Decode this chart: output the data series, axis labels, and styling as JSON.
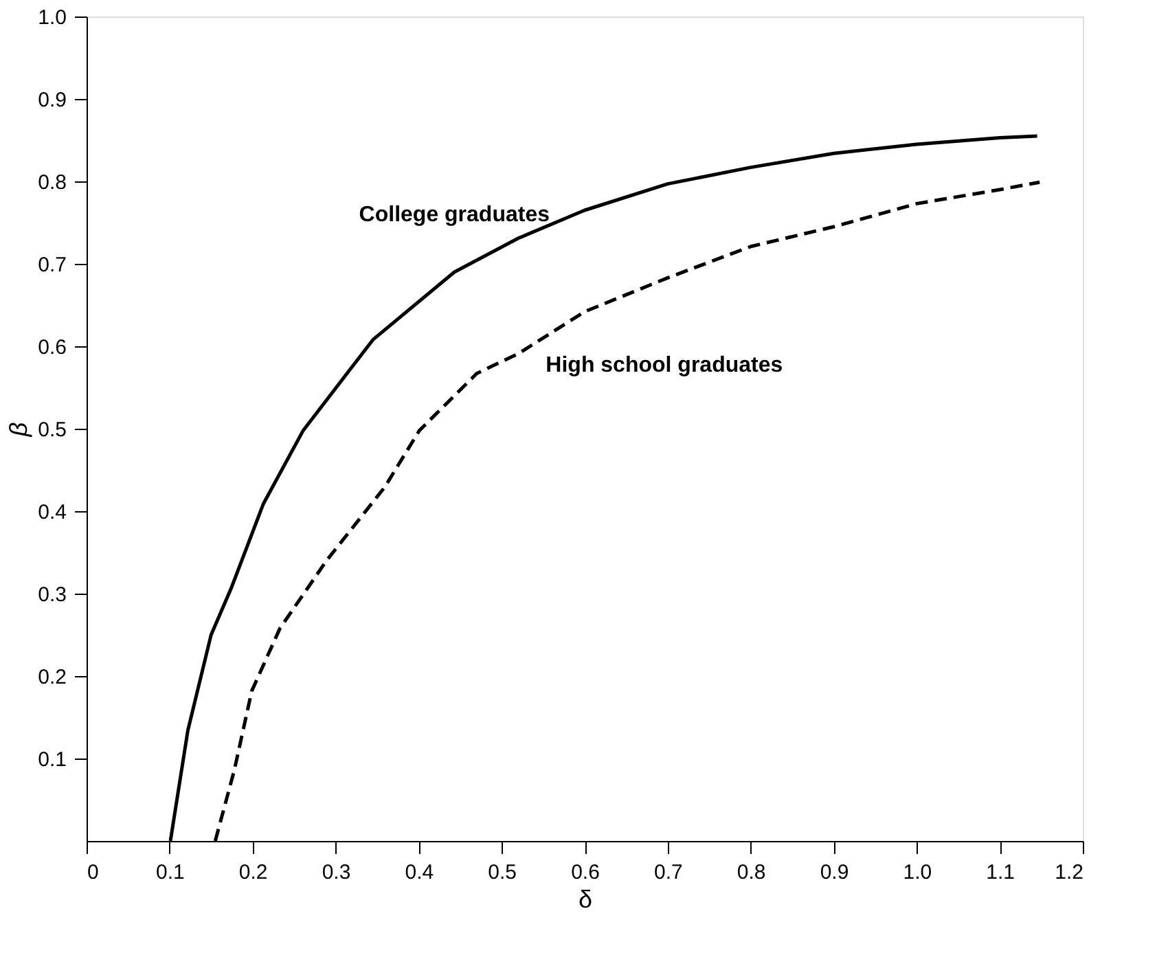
{
  "chart_data": {
    "type": "line",
    "xlabel": "δ",
    "ylabel": "β",
    "xlim": [
      0,
      1.2
    ],
    "ylim": [
      0,
      1.0
    ],
    "xticks": [
      0,
      0.1,
      0.2,
      0.3,
      0.4,
      0.5,
      0.6,
      0.7,
      0.8,
      0.9,
      {
        "value": 1.0,
        "label": "1.0"
      },
      1.1,
      1.2
    ],
    "yticks": [
      0.1,
      0.2,
      0.3,
      0.4,
      0.5,
      0.6,
      0.7,
      0.8,
      0.9,
      {
        "value": 1.0,
        "label": "1.0"
      }
    ],
    "grid": false,
    "legend": false,
    "marker": "none",
    "series": [
      {
        "name": "College graduates",
        "color": "#000000",
        "line_style": "solid",
        "x": [
          0.101,
          0.122,
          0.15,
          0.174,
          0.213,
          0.261,
          0.345,
          0.443,
          0.52,
          0.6,
          0.7,
          0.8,
          0.9,
          1.0,
          1.1,
          1.145
        ],
        "values": [
          0,
          0.134,
          0.25,
          0.306,
          0.409,
          0.498,
          0.608,
          0.69,
          0.731,
          0.765,
          0.797,
          0.817,
          0.834,
          0.845,
          0.853,
          0.855
        ]
      },
      {
        "name": "High school graduates",
        "color": "#000000",
        "line_style": "dashed",
        "x": [
          0.155,
          0.178,
          0.199,
          0.233,
          0.289,
          0.359,
          0.401,
          0.47,
          0.52,
          0.6,
          0.7,
          0.8,
          0.9,
          1.0,
          1.1,
          1.148
        ],
        "values": [
          0,
          0.086,
          0.182,
          0.258,
          0.34,
          0.429,
          0.498,
          0.567,
          0.591,
          0.642,
          0.683,
          0.721,
          0.745,
          0.773,
          0.79,
          0.799
        ]
      }
    ]
  }
}
